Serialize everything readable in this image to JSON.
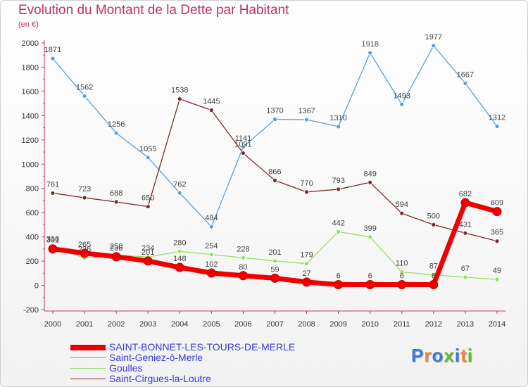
{
  "chart_data": {
    "type": "line",
    "title": "Evolution du Montant de la Dette par Habitant",
    "subtitle": "(en €)",
    "x": [
      2000,
      2001,
      2002,
      2003,
      2004,
      2005,
      2006,
      2007,
      2008,
      2009,
      2010,
      2011,
      2012,
      2013,
      2014
    ],
    "ylim": [
      -200,
      2000
    ],
    "yticks": [
      -200,
      0,
      200,
      400,
      600,
      800,
      1000,
      1200,
      1400,
      1600,
      1800,
      2000
    ],
    "grid": false,
    "legend_position": "bottom-left",
    "series": [
      {
        "name": "SAINT-BONNET-LES-TOURS-DE-MERLE",
        "color": "#ee0000",
        "values": [
          301,
          265,
          236,
          201,
          148,
          102,
          80,
          59,
          27,
          6,
          6,
          6,
          6,
          682,
          609
        ],
        "labels": [
          "301",
          "265",
          "236",
          "201",
          "148",
          "102",
          "80",
          "59",
          "27",
          "6",
          "6",
          "6",
          "6",
          "682",
          "609"
        ]
      },
      {
        "name": "Saint-Geniez-ô-Merle",
        "color": "#5aa0d8",
        "values": [
          1871,
          1562,
          1256,
          1055,
          762,
          484,
          1141,
          1370,
          1367,
          1310,
          1918,
          1493,
          1977,
          1667,
          1312
        ],
        "labels": [
          "1871",
          "1562",
          "1256",
          "1055",
          "762",
          "484",
          "1141",
          "1370",
          "1367",
          "1310",
          "1918",
          "1493",
          "1977",
          "1667",
          "1312"
        ]
      },
      {
        "name": "Goulles",
        "color": "#99dd66",
        "values": [
          310,
          226,
          250,
          234,
          280,
          254,
          228,
          201,
          179,
          442,
          399,
          110,
          87,
          67,
          49
        ],
        "labels": [
          "310",
          "226",
          "250",
          "234",
          "280",
          "254",
          "228",
          "201",
          "179",
          "442",
          "399",
          "110",
          "87",
          "67",
          "49"
        ]
      },
      {
        "name": "Saint-Cirgues-la-Loutre",
        "color": "#7a2a2a",
        "values": [
          761,
          723,
          688,
          650,
          1538,
          1445,
          1091,
          866,
          770,
          793,
          849,
          594,
          500,
          431,
          365
        ],
        "labels": [
          "761",
          "723",
          "688",
          "650",
          "1538",
          "1445",
          "1091",
          "866",
          "770",
          "793",
          "849",
          "594",
          "500",
          "431",
          "365"
        ]
      }
    ]
  },
  "logo": {
    "text": "Proxiti",
    "colors": [
      "#3a7bd5",
      "#ee8833",
      "#3a7bd5",
      "#66bb33",
      "#3a7bd5",
      "#ee8833",
      "#66bb33"
    ]
  }
}
